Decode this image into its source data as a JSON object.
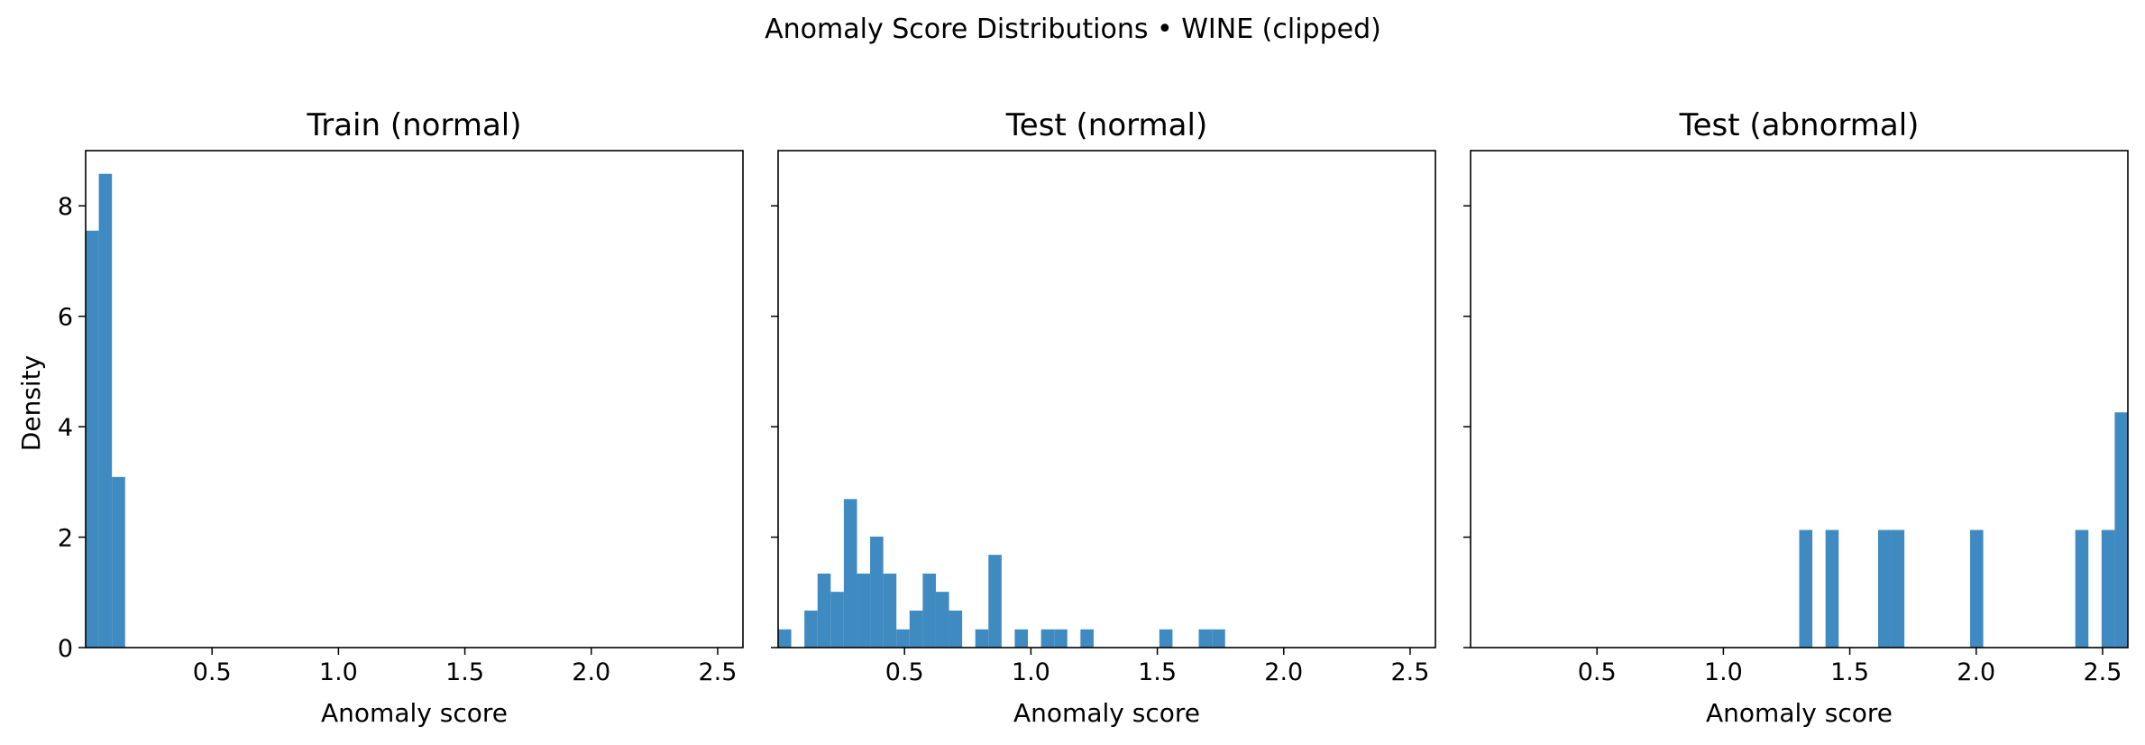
{
  "chart_data": {
    "type": "histogram",
    "suptitle": "Anomaly Score Distributions • WINE (clipped)",
    "ylabel": "Density",
    "xlim": [
      0.0,
      2.6
    ],
    "ylim": [
      0,
      9.0
    ],
    "xticks": [
      0.5,
      1.0,
      1.5,
      2.0,
      2.5
    ],
    "yticks": [
      0,
      2,
      4,
      6,
      8
    ],
    "bin_width": 0.052,
    "bar_color": "#3f8ac0",
    "sharey": true,
    "panels": [
      {
        "title": "Train (normal)",
        "xlabel": "Anomaly score",
        "bins": [
          {
            "x0": 0.0,
            "density": 7.55
          },
          {
            "x0": 0.052,
            "density": 8.58
          },
          {
            "x0": 0.104,
            "density": 3.09
          }
        ]
      },
      {
        "title": "Test (normal)",
        "xlabel": "Anomaly score",
        "bins": [
          {
            "x0": 0.0,
            "density": 0.33
          },
          {
            "x0": 0.104,
            "density": 0.67
          },
          {
            "x0": 0.156,
            "density": 1.34
          },
          {
            "x0": 0.208,
            "density": 1.01
          },
          {
            "x0": 0.26,
            "density": 2.69
          },
          {
            "x0": 0.312,
            "density": 1.34
          },
          {
            "x0": 0.364,
            "density": 2.01
          },
          {
            "x0": 0.416,
            "density": 1.34
          },
          {
            "x0": 0.468,
            "density": 0.33
          },
          {
            "x0": 0.52,
            "density": 0.67
          },
          {
            "x0": 0.572,
            "density": 1.34
          },
          {
            "x0": 0.624,
            "density": 1.01
          },
          {
            "x0": 0.676,
            "density": 0.67
          },
          {
            "x0": 0.78,
            "density": 0.33
          },
          {
            "x0": 0.832,
            "density": 1.68
          },
          {
            "x0": 0.936,
            "density": 0.33
          },
          {
            "x0": 1.04,
            "density": 0.33
          },
          {
            "x0": 1.092,
            "density": 0.33
          },
          {
            "x0": 1.196,
            "density": 0.33
          },
          {
            "x0": 1.508,
            "density": 0.33
          },
          {
            "x0": 1.664,
            "density": 0.33
          },
          {
            "x0": 1.716,
            "density": 0.33
          }
        ]
      },
      {
        "title": "Test (abnormal)",
        "xlabel": "Anomaly score",
        "bins": [
          {
            "x0": 1.3,
            "density": 2.13
          },
          {
            "x0": 1.404,
            "density": 2.13
          },
          {
            "x0": 1.612,
            "density": 2.13
          },
          {
            "x0": 1.664,
            "density": 2.13
          },
          {
            "x0": 1.976,
            "density": 2.13
          },
          {
            "x0": 2.392,
            "density": 2.13
          },
          {
            "x0": 2.496,
            "density": 2.13
          },
          {
            "x0": 2.548,
            "density": 4.26
          }
        ]
      }
    ]
  }
}
